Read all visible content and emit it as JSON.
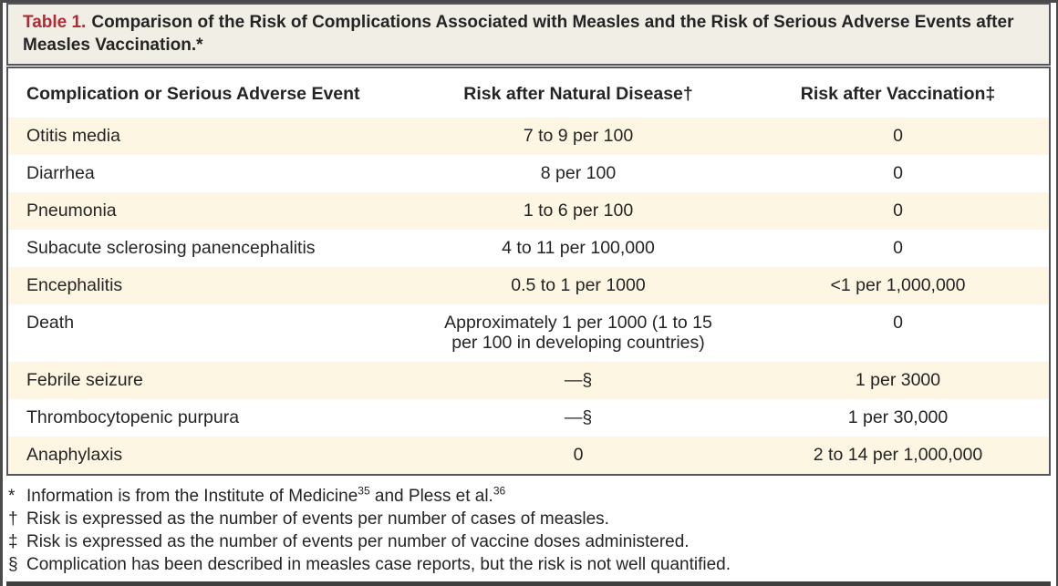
{
  "title": {
    "label": "Table 1.",
    "text": "Comparison of the Risk of Complications Associated with Measles and the Risk of Serious Adverse Events after Measles Vaccination.*"
  },
  "colors": {
    "accent_red": "#b12b35",
    "title_band_bg": "#f0eee5",
    "row_shade_bg": "#fdf6e3",
    "rule_dark": "#3f3f3f"
  },
  "table": {
    "columns": [
      {
        "label": "Complication or Serious Adverse Event"
      },
      {
        "label": "Risk after Natural Disease†"
      },
      {
        "label": "Risk after Vaccination‡"
      }
    ],
    "rows": [
      {
        "complication": "Otitis media",
        "natural": "7 to 9 per 100",
        "vaccination": "0",
        "shaded": true
      },
      {
        "complication": "Diarrhea",
        "natural": "8 per 100",
        "vaccination": "0",
        "shaded": false
      },
      {
        "complication": "Pneumonia",
        "natural": "1 to 6 per 100",
        "vaccination": "0",
        "shaded": true
      },
      {
        "complication": "Subacute sclerosing panencephalitis",
        "natural": "4 to 11 per 100,000",
        "vaccination": "0",
        "shaded": false
      },
      {
        "complication": "Encephalitis",
        "natural": "0.5 to 1 per 1000",
        "vaccination": "<1 per 1,000,000",
        "shaded": true
      },
      {
        "complication": "Death",
        "natural": "Approximately 1 per 1000 (1 to 15\nper 100 in developing countries)",
        "vaccination": "0",
        "shaded": false
      },
      {
        "complication": "Febrile seizure",
        "natural": "—§",
        "vaccination": "1 per 3000",
        "shaded": true
      },
      {
        "complication": "Thrombocytopenic purpura",
        "natural": "—§",
        "vaccination": "1 per 30,000",
        "shaded": false
      },
      {
        "complication": "Anaphylaxis",
        "natural": "0",
        "vaccination": "2 to 14 per 1,000,000",
        "shaded": true
      }
    ]
  },
  "footnotes": [
    {
      "marker": "*",
      "segments": [
        {
          "text": "Information is from the Institute of Medicine"
        },
        {
          "sup": "35"
        },
        {
          "text": " and Pless et al."
        },
        {
          "sup": "36"
        }
      ]
    },
    {
      "marker": "†",
      "segments": [
        {
          "text": "Risk is expressed as the number of events per number of cases of measles."
        }
      ]
    },
    {
      "marker": "‡",
      "segments": [
        {
          "text": "Risk is expressed as the number of events per number of vaccine doses administered."
        }
      ]
    },
    {
      "marker": "§",
      "segments": [
        {
          "text": "Complication has been described in measles case reports, but the risk is not well quantified."
        }
      ]
    }
  ]
}
